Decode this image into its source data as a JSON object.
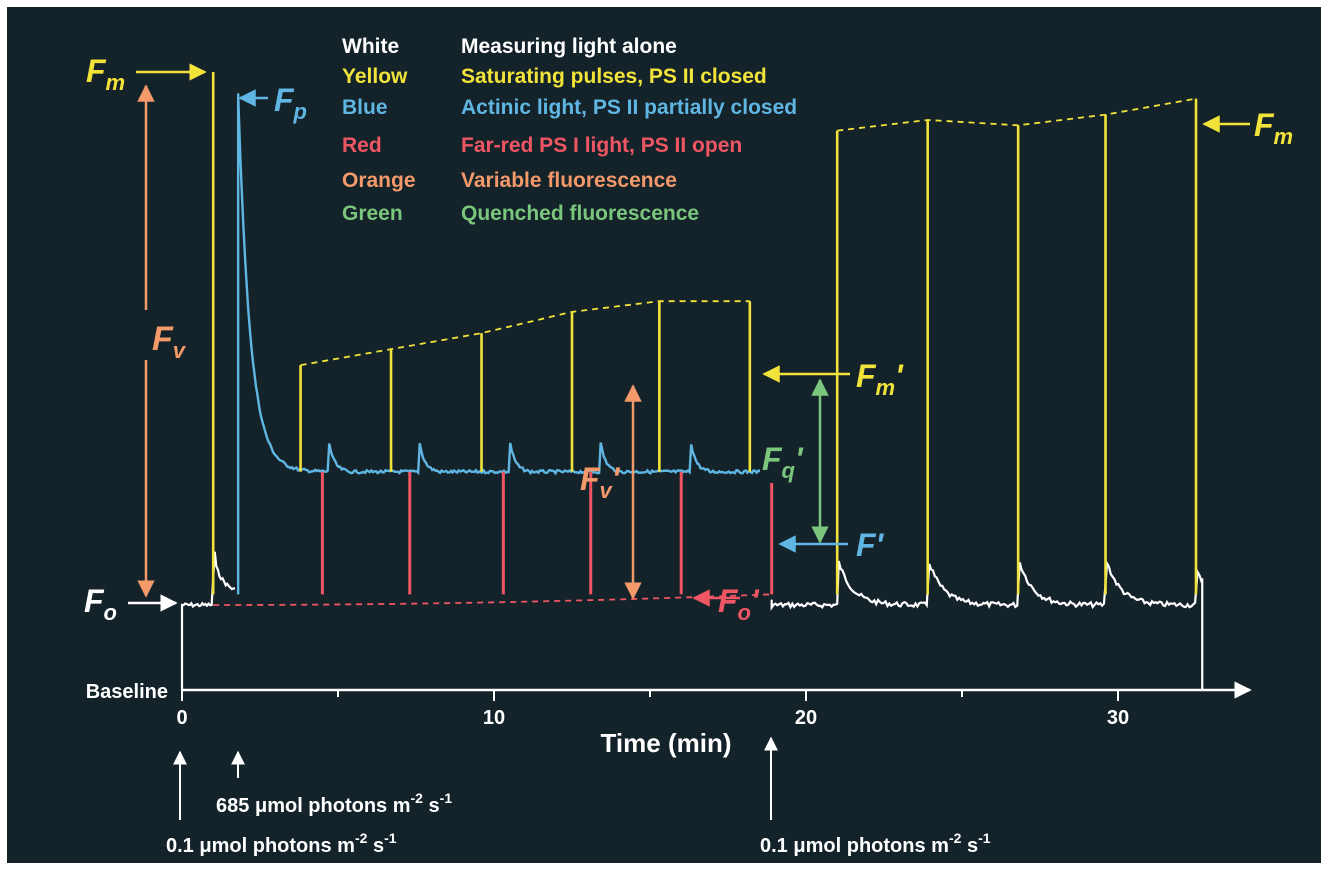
{
  "chart_data": {
    "type": "line",
    "title": "",
    "xlabel": "Time (min)",
    "ylabel": "",
    "xlim": [
      0,
      34
    ],
    "ylim": [
      0,
      1
    ],
    "x_ticks": [
      0,
      10,
      20,
      30
    ],
    "baseline_label": "Baseline",
    "legend": [
      {
        "color_name": "White",
        "text": "Measuring light alone",
        "color": "#ffffff"
      },
      {
        "color_name": "Yellow",
        "text": "Saturating pulses, PS II closed",
        "color": "#f2e33a"
      },
      {
        "color_name": "Blue",
        "text": "Actinic light, PS II partially closed",
        "color": "#5fb6e3"
      },
      {
        "color_name": "Red",
        "text": "Far-red PS I light, PS II open",
        "color": "#ef5664"
      },
      {
        "color_name": "Orange",
        "text": "Variable fluorescence",
        "color": "#f3996a"
      },
      {
        "color_name": "Green",
        "text": "Quenched fluorescence",
        "color": "#79c67c"
      }
    ],
    "labels": {
      "fm_left": "F",
      "fm_left_sub": "m",
      "fp": "F",
      "fp_sub": "p",
      "fm_right": "F",
      "fm_right_sub": "m",
      "fv": "F",
      "fv_sub": "v",
      "fo": "F",
      "fo_sub": "o",
      "fm_prime": "F",
      "fm_prime_sub": "m",
      "fm_prime_mark": "'",
      "fv_prime": "F",
      "fv_prime_sub": "v",
      "fv_prime_mark": "'",
      "fq_prime": "F",
      "fq_prime_sub": "q",
      "fq_prime_mark": "'",
      "f_prime": "F'",
      "fo_prime": "F",
      "fo_prime_sub": "o",
      "fo_prime_mark": "'"
    },
    "annotations": [
      {
        "text_a": "685 ",
        "mu": "μ",
        "text_b": "mol photons m",
        "exp1": "-2",
        "text_c": " s",
        "exp2": "-1",
        "time": 1.8
      },
      {
        "text_a": "0.1 ",
        "mu": "μ",
        "text_b": "mol photons m",
        "exp1": "-2",
        "text_c": " s",
        "exp2": "-1",
        "time": 0
      },
      {
        "text_a": "0.1 ",
        "mu": "μ",
        "text_b": "mol photons m",
        "exp1": "-2",
        "text_c": " s",
        "exp2": "-1",
        "time": 19
      }
    ],
    "series": [
      {
        "name": "Yellow",
        "pulse_times": [
          1.0,
          3.8,
          6.7,
          9.6,
          12.5,
          15.3,
          18.2,
          21.0,
          23.9,
          26.8,
          29.6,
          32.5
        ],
        "pulse_peaks": [
          1.0,
          0.45,
          0.48,
          0.51,
          0.55,
          0.57,
          0.57,
          0.89,
          0.91,
          0.9,
          0.92,
          0.95
        ]
      },
      {
        "name": "Blue",
        "fp_time": 1.8,
        "fp_peak": 0.96,
        "steady_level": 0.25,
        "spike_times": [
          4.7,
          7.6,
          10.5,
          13.4,
          16.3
        ]
      },
      {
        "name": "Red",
        "far_red_times": [
          4.5,
          7.3,
          10.3,
          13.1,
          16.0,
          18.9
        ],
        "fo_prime_level": 0.02
      },
      {
        "name": "White",
        "fo_level": 0.0,
        "end_time": 32.7
      }
    ]
  }
}
